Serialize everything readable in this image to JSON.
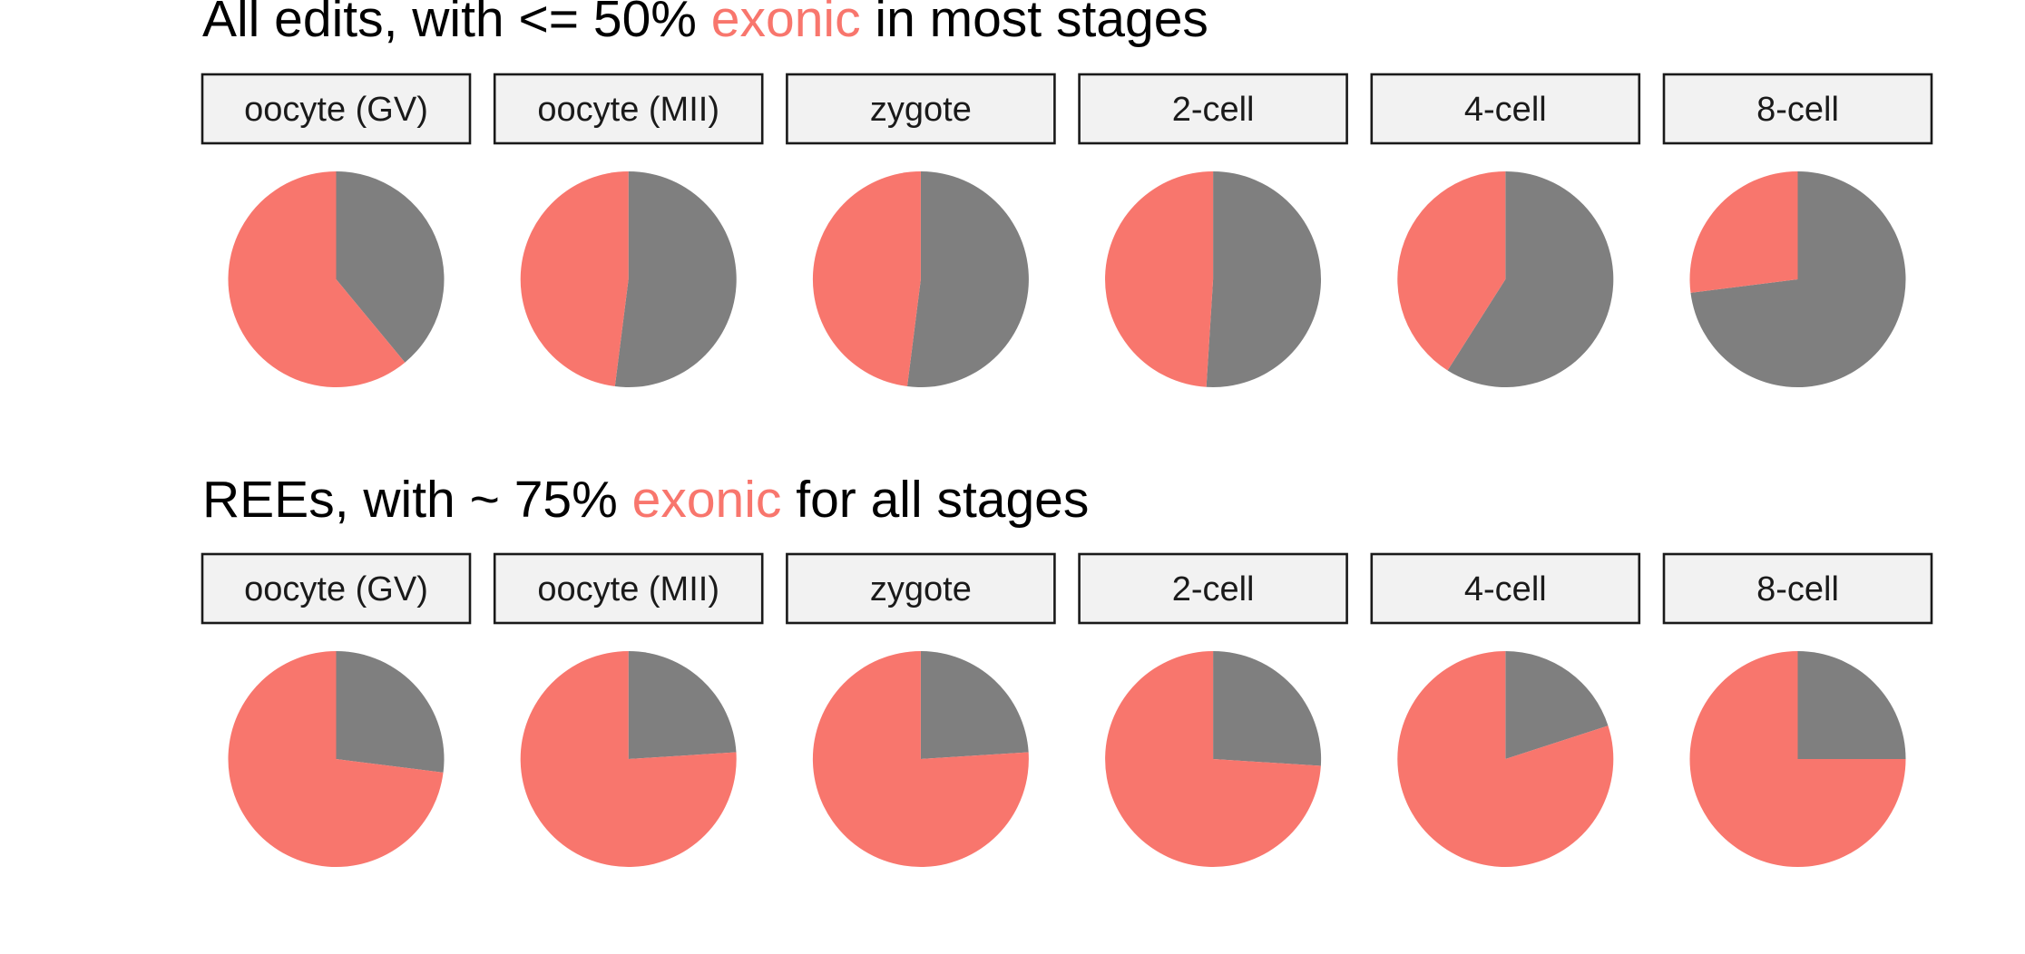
{
  "colors": {
    "exonic": "#f8766d",
    "other": "#7f7f7f"
  },
  "chart_data": [
    {
      "type": "pie",
      "title": {
        "before": "All edits, with <= 50% ",
        "highlight": "exonic",
        "after": " in most stages"
      },
      "categories": [
        "oocyte (GV)",
        "oocyte (MII)",
        "zygote",
        "2-cell",
        "4-cell",
        "8-cell"
      ],
      "series": [
        {
          "values": [
            0.61,
            0.48,
            0.48,
            0.49,
            0.41,
            0.27
          ]
        }
      ],
      "legend": "none"
    },
    {
      "type": "pie",
      "title": {
        "before": "REEs, with ~ 75% ",
        "highlight": "exonic",
        "after": " for all stages"
      },
      "categories": [
        "oocyte (GV)",
        "oocyte (MII)",
        "zygote",
        "2-cell",
        "4-cell",
        "8-cell"
      ],
      "series": [
        {
          "values": [
            0.73,
            0.76,
            0.76,
            0.74,
            0.8,
            0.75
          ]
        }
      ],
      "legend": "none"
    }
  ]
}
